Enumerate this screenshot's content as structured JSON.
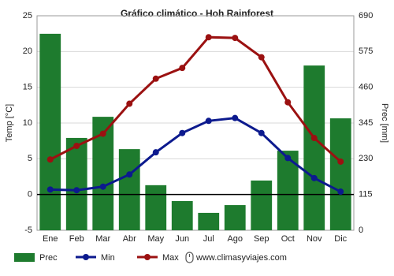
{
  "chart_data": {
    "type": "combo",
    "title": "Gráfico climático - Hoh Rainforest",
    "y_label": "Temp [°C]",
    "y2_label": "Prec [mm]",
    "categories": [
      "Ene",
      "Feb",
      "Mar",
      "Abr",
      "May",
      "Jun",
      "Jul",
      "Ago",
      "Sep",
      "Oct",
      "Nov",
      "Dic"
    ],
    "series": [
      {
        "name": "Prec",
        "type": "bar",
        "axis": "y2",
        "color": "#1e7b2e",
        "values": [
          632,
          297,
          365,
          261,
          145,
          94,
          56,
          81,
          160,
          256,
          530,
          360
        ]
      },
      {
        "name": "Min",
        "type": "line",
        "color": "#0c1a8e",
        "values": [
          0.7,
          0.6,
          1.1,
          2.8,
          5.9,
          8.6,
          10.3,
          10.7,
          8.6,
          5.1,
          2.3,
          0.4
        ]
      },
      {
        "name": "Max",
        "type": "line",
        "color": "#9b1111",
        "values": [
          4.9,
          6.8,
          8.5,
          12.7,
          16.2,
          17.7,
          22.0,
          21.9,
          19.2,
          12.9,
          7.9,
          4.6
        ]
      }
    ],
    "ylim": [
      -5,
      25
    ],
    "yticks": [
      -5,
      0,
      5,
      10,
      15,
      20,
      25
    ],
    "y2lim": [
      0,
      690
    ],
    "y2ticks": [
      0,
      115,
      230,
      345,
      460,
      575,
      690
    ],
    "grid": true,
    "watermark": "www.climasyviajes.com"
  }
}
